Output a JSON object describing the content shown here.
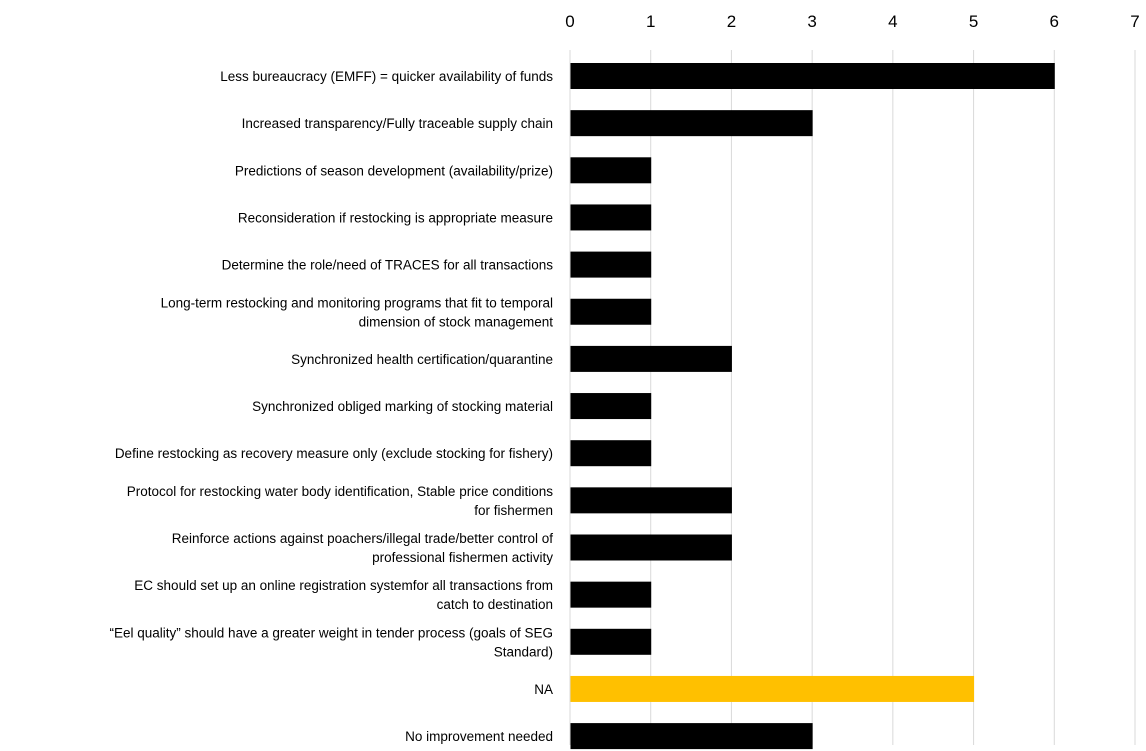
{
  "chart_data": {
    "type": "bar",
    "orientation": "horizontal",
    "title": "",
    "xlabel": "",
    "ylabel": "",
    "xlim": [
      0,
      7
    ],
    "x_ticks": [
      0,
      1,
      2,
      3,
      4,
      5,
      6,
      7
    ],
    "x_axis_position": "top",
    "grid": true,
    "legend": "none",
    "categories": [
      [
        "Less bureaucracy (EMFF) = quicker availability of funds"
      ],
      [
        "Increased transparency/Fully traceable supply chain"
      ],
      [
        "Predictions of season development (availability/prize)"
      ],
      [
        "Reconsideration if restocking is appropriate measure"
      ],
      [
        "Determine the role/need of TRACES for all transactions"
      ],
      [
        "Long-term restocking and monitoring programs that fit to temporal",
        "dimension of stock management"
      ],
      [
        "Synchronized health certification/quarantine"
      ],
      [
        "Synchronized obliged marking of stocking material"
      ],
      [
        "Define restocking as recovery measure only (exclude stocking for fishery)"
      ],
      [
        "Protocol for restocking water body identification, Stable price conditions",
        "for fishermen"
      ],
      [
        "Reinforce actions against poachers/illegal trade/better control of",
        "professional fishermen activity"
      ],
      [
        "EC should set up an online registration systemfor all transactions from",
        "catch to destination"
      ],
      [
        "“Eel quality” should have a greater weight in tender process (goals of SEG",
        "Standard)"
      ],
      [
        "NA"
      ],
      [
        "No improvement needed"
      ]
    ],
    "values": [
      6,
      3,
      1,
      1,
      1,
      1,
      2,
      1,
      1,
      2,
      2,
      1,
      1,
      5,
      3
    ],
    "colors": {
      "default": "#000000",
      "highlight": "#ffc000",
      "grid": "#d9d9d9"
    },
    "highlight_categories": [
      "NA"
    ]
  }
}
